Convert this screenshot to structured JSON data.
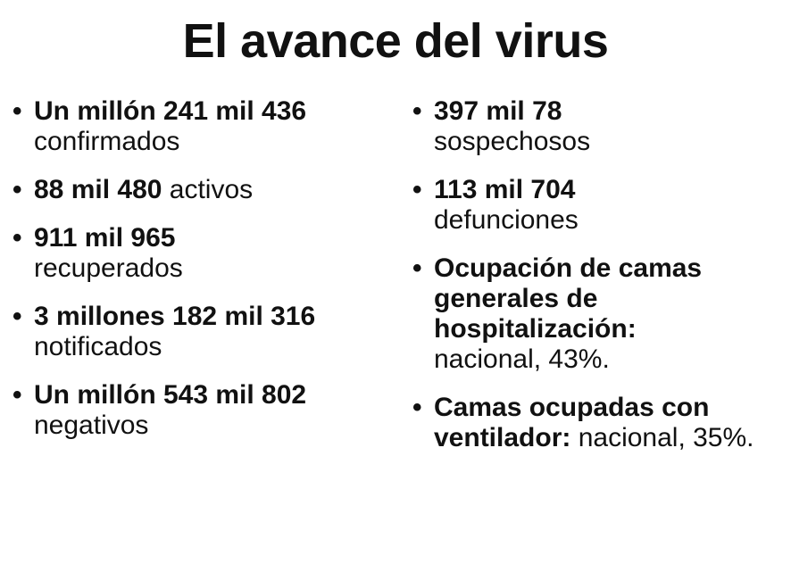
{
  "title": "El avance del virus",
  "bullet": "•",
  "left": [
    {
      "strong": "Un millón 241 mil 436",
      "rest": "confirmados",
      "rest_inline": false
    },
    {
      "strong": "88 mil 480",
      "rest": " activos",
      "rest_inline": true
    },
    {
      "strong": "911 mil 965",
      "rest": "recuperados",
      "rest_inline": false
    },
    {
      "strong": "3 millones 182 mil 316",
      "rest": "notificados",
      "rest_inline": false
    },
    {
      "strong": "Un millón 543 mil 802",
      "rest": "negativos",
      "rest_inline": false
    }
  ],
  "right": [
    {
      "strong": "397 mil 78",
      "rest": "sospechosos",
      "rest_inline": false
    },
    {
      "strong": "113 mil 704",
      "rest": "defunciones",
      "rest_inline": false
    },
    {
      "strong": "Ocupación de camas generales de hospitalización:",
      "rest": "nacional, 43%.",
      "rest_inline": false
    },
    {
      "strong": "Camas ocupadas con ventilador:",
      "rest": " nacional, 35%.",
      "rest_inline": true
    }
  ]
}
